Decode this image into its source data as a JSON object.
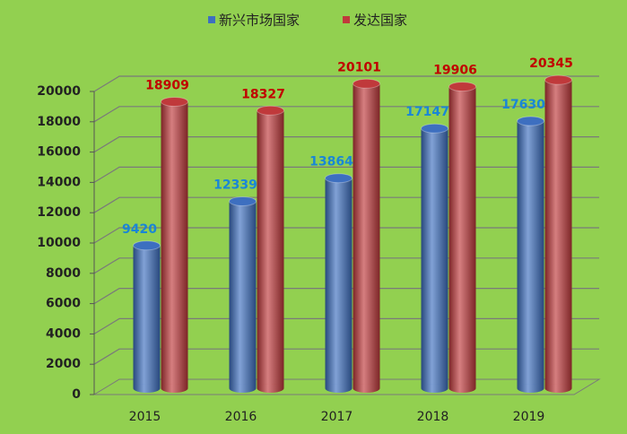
{
  "chart_data": {
    "type": "bar",
    "categories": [
      "2015",
      "2016",
      "2017",
      "2018",
      "2019"
    ],
    "series": [
      {
        "name": "新兴市场国家",
        "color": "#3d6fc0",
        "values": [
          9420,
          12339,
          13864,
          17147,
          17630
        ]
      },
      {
        "name": "发达国家",
        "color": "#c0393b",
        "values": [
          18909,
          18327,
          20101,
          19906,
          20345
        ]
      }
    ],
    "ylim": [
      0,
      20000
    ],
    "yticks": [
      0,
      2000,
      4000,
      6000,
      8000,
      10000,
      12000,
      14000,
      16000,
      18000,
      20000
    ],
    "grid": true,
    "legend": "top"
  }
}
